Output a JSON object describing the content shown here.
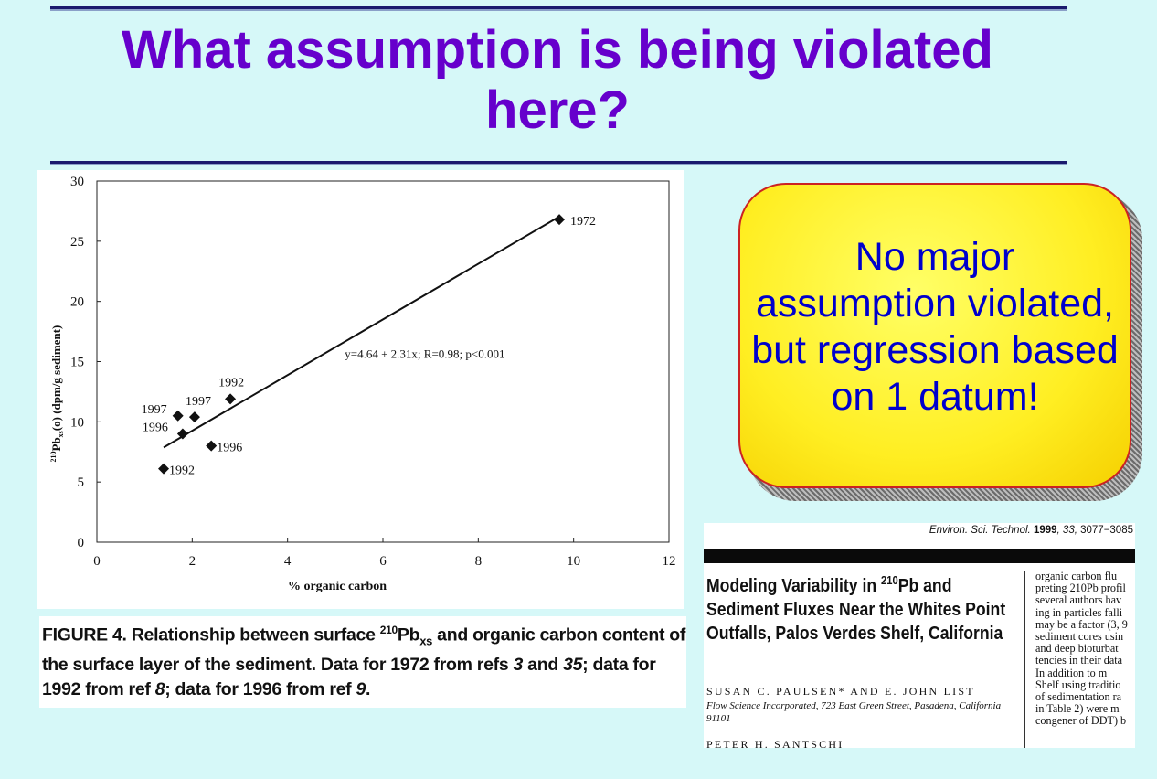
{
  "slide": {
    "title": "What assumption is being violated here?",
    "callout": "No major assumption violated, but regression based on 1 datum!",
    "caption": {
      "figure_label": "FIGURE 4.",
      "text_1": " Relationship between surface ",
      "sup_210": "210",
      "pb": "Pb",
      "sub_xs": "xs",
      "text_2": " and organic carbon content of the surface layer of the sediment. Data for 1972 from refs ",
      "ref_3": "3",
      "and": " and ",
      "ref_35": "35",
      "text_3": "; data for 1992 from ref ",
      "ref_8": "8",
      "text_4": "; data for 1996 from ref ",
      "ref_9": "9",
      "end": "."
    }
  },
  "chart_data": {
    "type": "scatter",
    "xlabel": "% organic carbon",
    "ylabel": "210Pbxs(o) (dpm/g sediment)",
    "ylabel_sup": "210",
    "ylabel_pb": "Pb",
    "ylabel_sub": "xs",
    "ylabel_rest": "(o) (dpm/g sediment)",
    "xlim": [
      0,
      12
    ],
    "ylim": [
      0,
      30
    ],
    "xticks": [
      "0",
      "2",
      "4",
      "6",
      "8",
      "10",
      "12"
    ],
    "xtick_values": [
      0,
      2,
      4,
      6,
      8,
      10,
      12
    ],
    "yticks": [
      "0",
      "5",
      "10",
      "15",
      "20",
      "25",
      "30"
    ],
    "ytick_values": [
      0,
      5,
      10,
      15,
      20,
      25,
      30
    ],
    "points": [
      {
        "x": 9.7,
        "y": 26.8,
        "label": "1972"
      },
      {
        "x": 2.8,
        "y": 11.9,
        "label": "1992"
      },
      {
        "x": 2.05,
        "y": 10.4,
        "label": "1997"
      },
      {
        "x": 1.7,
        "y": 10.5,
        "label": "1997"
      },
      {
        "x": 1.8,
        "y": 9.0,
        "label": "1996"
      },
      {
        "x": 2.4,
        "y": 8.0,
        "label": "1996"
      },
      {
        "x": 1.4,
        "y": 6.1,
        "label": "1992"
      }
    ],
    "regression": {
      "intercept": 4.64,
      "slope": 2.31,
      "x_range": [
        1.4,
        9.7
      ]
    },
    "annotation": "y=4.64 + 2.31x; R=0.98; p<0.001",
    "grid": false
  },
  "paper": {
    "journal_name": "Environ. Sci. Technol.",
    "journal_year": "1999",
    "journal_vol": "33",
    "journal_pages": "3077−3085",
    "title_1": "Modeling Variability in ",
    "title_sup": "210",
    "title_2": "Pb and Sediment Fluxes Near the Whites Point Outfalls, Palos Verdes Shelf, California",
    "authors": "SUSAN C. PAULSEN* AND E. JOHN LIST",
    "affiliation": "Flow Science Incorporated, 723 East Green Street, Pasadena, California 91101",
    "author2": "PETER H. SANTSCHI",
    "column_lines": [
      "organic carbon flu",
      "preting 210Pb profil",
      "several authors hav",
      "ing in particles falli",
      "may be a factor (3, 9",
      "sediment cores usin",
      "and deep bioturbat",
      "tencies in their data",
      "    In addition to m",
      "Shelf using traditio",
      "of sedimentation ra",
      "in Table 2) were m",
      "congener of DDT) b"
    ]
  }
}
